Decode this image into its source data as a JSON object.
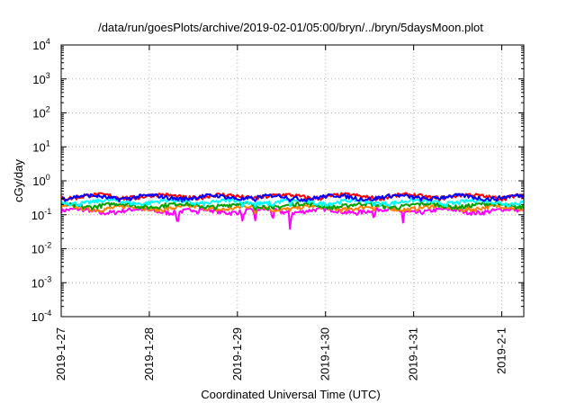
{
  "chart_data": {
    "type": "line",
    "title": "/data/run/goesPlots/archive/2019-02-01/05:00/bryn/../bryn/5daysMoon.plot",
    "xlabel": "Coordinated Universal Time (UTC)",
    "ylabel": "cGy/day",
    "y_scale": "log",
    "ylim": [
      0.0001,
      10000
    ],
    "y_ticks": [
      {
        "base": "10",
        "exp": "-4"
      },
      {
        "base": "10",
        "exp": "-3"
      },
      {
        "base": "10",
        "exp": "-2"
      },
      {
        "base": "10",
        "exp": "-1"
      },
      {
        "base": "10",
        "exp": "0"
      },
      {
        "base": "10",
        "exp": "1"
      },
      {
        "base": "10",
        "exp": "2"
      },
      {
        "base": "10",
        "exp": "3"
      },
      {
        "base": "10",
        "exp": "4"
      }
    ],
    "x_range": [
      "2019-01-27",
      "2019-02-01 06:00"
    ],
    "x_ticks": [
      "2019-1-27",
      "2019-1-28",
      "2019-1-29",
      "2019-1-30",
      "2019-1-31",
      "2019-2-1"
    ],
    "grid": true,
    "series": [
      {
        "color": "#ff00ff",
        "baseline": 0.13,
        "dips": [
          [
            1.32,
            0.022
          ],
          [
            2.06,
            0.05
          ],
          [
            2.2,
            0.06
          ],
          [
            2.4,
            0.055
          ],
          [
            2.6,
            0.011
          ],
          [
            3.55,
            0.06
          ],
          [
            3.88,
            0.055
          ],
          [
            1.55,
            0.1
          ],
          [
            0.45,
            0.1
          ]
        ]
      },
      {
        "color": "#ff8000",
        "baseline": 0.16,
        "dips": [
          [
            2.2,
            0.1
          ],
          [
            2.4,
            0.1
          ],
          [
            3.55,
            0.12
          ]
        ]
      },
      {
        "color": "#00a000",
        "baseline": 0.19,
        "dips": [
          [
            2.2,
            0.13
          ],
          [
            2.4,
            0.13
          ]
        ]
      },
      {
        "color": "#00ffff",
        "baseline": 0.24,
        "dips": [
          [
            2.06,
            0.15
          ],
          [
            2.2,
            0.16
          ],
          [
            2.4,
            0.15
          ],
          [
            2.6,
            0.16
          ],
          [
            3.55,
            0.16
          ]
        ]
      },
      {
        "color": "#ff0000",
        "baseline": 0.35,
        "dips": []
      },
      {
        "color": "#0000ff",
        "baseline": 0.33,
        "dips": [
          [
            2.6,
            0.22
          ],
          [
            2.2,
            0.24
          ],
          [
            3.55,
            0.24
          ]
        ]
      }
    ]
  }
}
